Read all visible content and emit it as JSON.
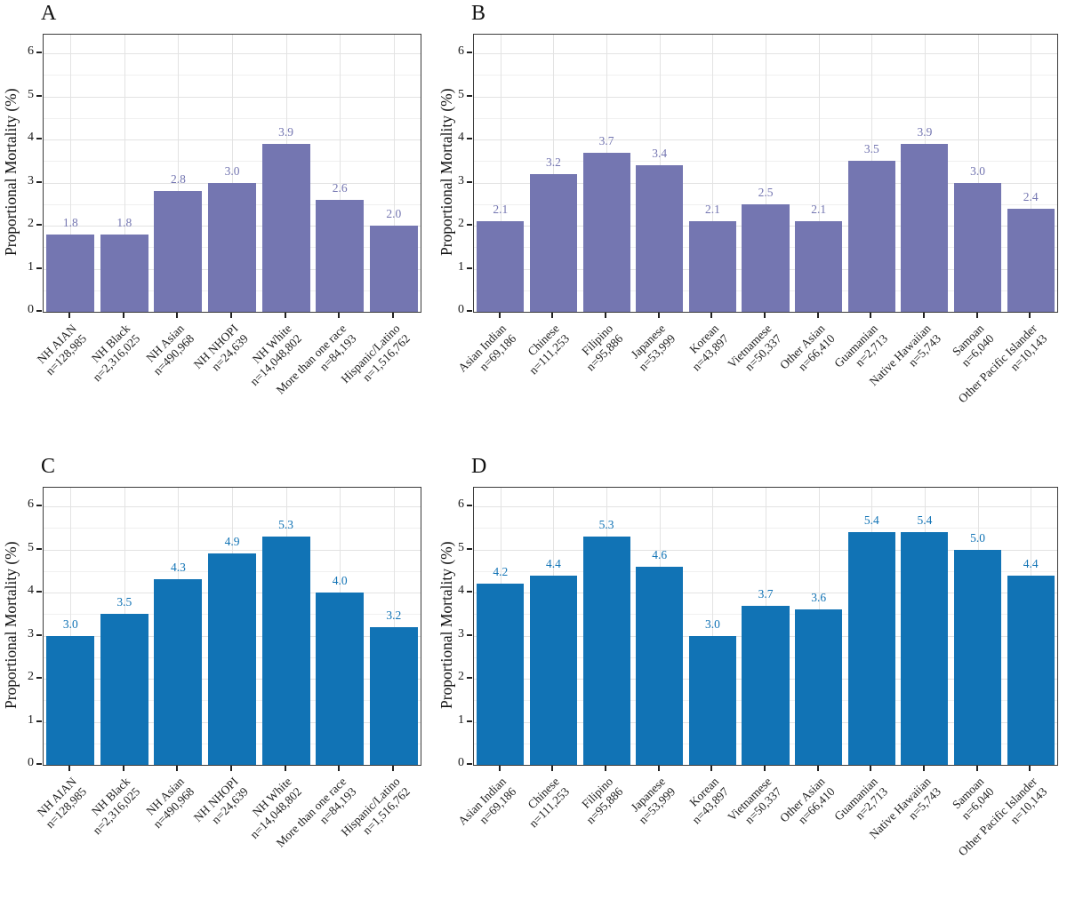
{
  "figure": {
    "background": "#ffffff",
    "axis_color": "#3c3c3c",
    "grid_major_color": "#e3e3e3",
    "grid_minor_color": "#f0f0f0",
    "text_color": "#1c1c1c",
    "purple": "#7476b1",
    "blue": "#1173b5"
  },
  "chart_data": [
    {
      "panel": "A",
      "type": "bar",
      "bar_color": "#7476b1",
      "label_color": "#7476b1",
      "ylabel": "Proportional Mortality (%)",
      "ylim": [
        0,
        6.4
      ],
      "y_ticks": [
        0,
        1,
        2,
        3,
        4,
        5,
        6
      ],
      "grid": "horizontal major+minor, vertical major at category centers",
      "categories": [
        "NH AIAN",
        "NH Black",
        "NH Asian",
        "NH NHOPI",
        "NH White",
        "More than one race",
        "Hispanic/Latino"
      ],
      "n_labels": [
        "n=128,985",
        "n=2,316,025",
        "n=490,968",
        "n=24,639",
        "n=14,048,802",
        "n=84,193",
        "n=1,516,762"
      ],
      "values": [
        1.8,
        1.8,
        2.8,
        3.0,
        3.9,
        2.6,
        2.0
      ]
    },
    {
      "panel": "B",
      "type": "bar",
      "bar_color": "#7476b1",
      "label_color": "#7476b1",
      "ylabel": "Proportional Mortality (%)",
      "ylim": [
        0,
        6.4
      ],
      "y_ticks": [
        0,
        1,
        2,
        3,
        4,
        5,
        6
      ],
      "grid": "horizontal major+minor, vertical major at category centers",
      "categories": [
        "Asian Indian",
        "Chinese",
        "Filipino",
        "Japanese",
        "Korean",
        "Vietnamese",
        "Other Asian",
        "Guamanian",
        "Native Hawaiian",
        "Samoan",
        "Other Pacific Islander"
      ],
      "n_labels": [
        "n=69,186",
        "n=111,253",
        "n=95,886",
        "n=53,999",
        "n=43,897",
        "n=50,337",
        "n=66,410",
        "n=2,713",
        "n=5,743",
        "n=6,040",
        "n=10,143"
      ],
      "values": [
        2.1,
        3.2,
        3.7,
        3.4,
        2.1,
        2.5,
        2.1,
        3.5,
        3.9,
        3.0,
        2.4
      ]
    },
    {
      "panel": "C",
      "type": "bar",
      "bar_color": "#1173b5",
      "label_color": "#1173b5",
      "ylabel": "Proportional Mortality (%)",
      "ylim": [
        0,
        6.4
      ],
      "y_ticks": [
        0,
        1,
        2,
        3,
        4,
        5,
        6
      ],
      "grid": "horizontal major+minor, vertical major at category centers",
      "categories": [
        "NH AIAN",
        "NH Black",
        "NH Asian",
        "NH NHOPI",
        "NH White",
        "More than one race",
        "Hispanic/Latino"
      ],
      "n_labels": [
        "n=128,985",
        "n=2,316,025",
        "n=490,968",
        "n=24,639",
        "n=14,048,802",
        "n=84,193",
        "n=1,516,762"
      ],
      "values": [
        3.0,
        3.5,
        4.3,
        4.9,
        5.3,
        4.0,
        3.2
      ]
    },
    {
      "panel": "D",
      "type": "bar",
      "bar_color": "#1173b5",
      "label_color": "#1173b5",
      "ylabel": "Proportional Mortality (%)",
      "ylim": [
        0,
        6.4
      ],
      "y_ticks": [
        0,
        1,
        2,
        3,
        4,
        5,
        6
      ],
      "grid": "horizontal major+minor, vertical major at category centers",
      "categories": [
        "Asian Indian",
        "Chinese",
        "Filipino",
        "Japanese",
        "Korean",
        "Vietnamese",
        "Other Asian",
        "Guamanian",
        "Native Hawaiian",
        "Samoan",
        "Other Pacific Islander"
      ],
      "n_labels": [
        "n=69,186",
        "n=111,253",
        "n=95,886",
        "n=53,999",
        "n=43,897",
        "n=50,337",
        "n=66,410",
        "n=2,713",
        "n=5,743",
        "n=6,040",
        "n=10,143"
      ],
      "values": [
        4.2,
        4.4,
        5.3,
        4.6,
        3.0,
        3.7,
        3.6,
        5.4,
        5.4,
        5.0,
        4.4
      ]
    }
  ]
}
